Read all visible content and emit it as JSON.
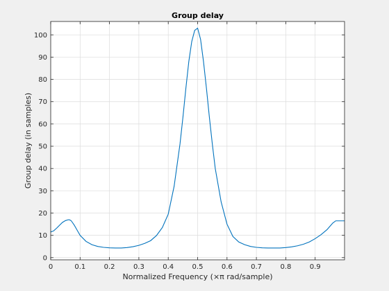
{
  "chart_data": {
    "type": "line",
    "title": "Group delay",
    "xlabel": "Normalized Frequency (×π rad/sample)",
    "ylabel": "Group delay (in samples)",
    "xlim": [
      0,
      1
    ],
    "ylim": [
      -1,
      106
    ],
    "xticks": [
      0,
      0.1,
      0.2,
      0.3,
      0.4,
      0.5,
      0.6,
      0.7,
      0.8,
      0.9
    ],
    "xtick_labels": [
      "0",
      "0.1",
      "0.2",
      "0.3",
      "0.4",
      "0.5",
      "0.6",
      "0.7",
      "0.8",
      "0.9"
    ],
    "yticks": [
      0,
      10,
      20,
      30,
      40,
      50,
      60,
      70,
      80,
      90,
      100
    ],
    "ytick_labels": [
      "0",
      "10",
      "20",
      "30",
      "40",
      "50",
      "60",
      "70",
      "80",
      "90",
      "100"
    ],
    "grid": true,
    "colors": {
      "line": "#0072bd",
      "axes_bg": "#ffffff",
      "figure_bg": "#f0f0f0",
      "grid": "#dcdcdc",
      "axis": "#262626"
    },
    "series": [
      {
        "x": [
          0,
          0.01,
          0.02,
          0.03,
          0.04,
          0.05,
          0.06,
          0.065,
          0.07,
          0.08,
          0.09,
          0.1,
          0.12,
          0.14,
          0.16,
          0.18,
          0.2,
          0.22,
          0.24,
          0.26,
          0.28,
          0.3,
          0.32,
          0.34,
          0.36,
          0.38,
          0.4,
          0.42,
          0.44,
          0.45,
          0.46,
          0.47,
          0.48,
          0.49,
          0.5,
          0.51,
          0.52,
          0.53,
          0.54,
          0.55,
          0.56,
          0.58,
          0.6,
          0.62,
          0.64,
          0.66,
          0.68,
          0.7,
          0.72,
          0.74,
          0.76,
          0.78,
          0.8,
          0.82,
          0.84,
          0.86,
          0.88,
          0.9,
          0.92,
          0.94,
          0.95,
          0.96,
          0.97,
          0.98,
          0.99,
          1.0
        ],
        "values": [
          11.5,
          12,
          13.2,
          14.5,
          15.8,
          16.6,
          17,
          16.9,
          16.5,
          14.6,
          12.3,
          10,
          7.3,
          5.8,
          5,
          4.6,
          4.4,
          4.3,
          4.3,
          4.5,
          4.9,
          5.5,
          6.4,
          7.6,
          9.9,
          13.5,
          19.5,
          32,
          51,
          63,
          76,
          88,
          97,
          102,
          103,
          98,
          88,
          76,
          63,
          51,
          40,
          25,
          15,
          9.5,
          7,
          5.8,
          5,
          4.6,
          4.4,
          4.3,
          4.3,
          4.3,
          4.5,
          4.8,
          5.3,
          6,
          7,
          8.5,
          10.3,
          12.5,
          14,
          15.5,
          16.5,
          16.5,
          16.5,
          16.5
        ]
      }
    ]
  }
}
